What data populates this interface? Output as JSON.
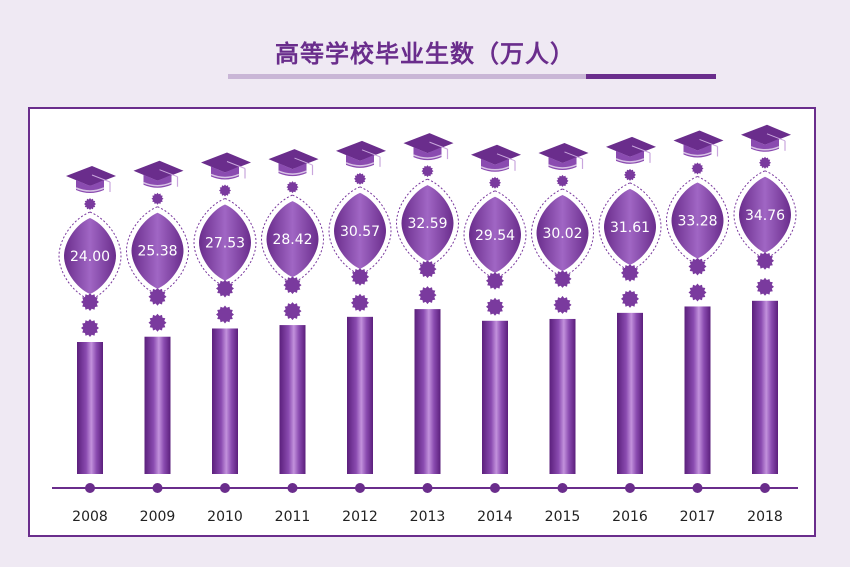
{
  "title": "高等学校毕业生数（万人）",
  "colors": {
    "accent": "#6a2d8c",
    "bar_dark": "#5b1f7c",
    "bar_light": "#b07ad0",
    "background": "#efe9f3"
  },
  "chart_data": {
    "type": "bar",
    "title": "高等学校毕业生数（万人）",
    "xlabel": "",
    "ylabel": "",
    "categories": [
      "2008",
      "2009",
      "2010",
      "2011",
      "2012",
      "2013",
      "2014",
      "2015",
      "2016",
      "2017",
      "2018"
    ],
    "values": [
      24.0,
      25.38,
      27.53,
      28.42,
      30.57,
      32.59,
      29.54,
      30.02,
      31.61,
      33.28,
      34.76
    ],
    "value_labels": [
      "24.00",
      "25.38",
      "27.53",
      "28.42",
      "30.57",
      "32.59",
      "29.54",
      "30.02",
      "31.61",
      "33.28",
      "34.76"
    ],
    "grid": false,
    "legend": "none",
    "decoration": "graduation-cap-icon"
  }
}
